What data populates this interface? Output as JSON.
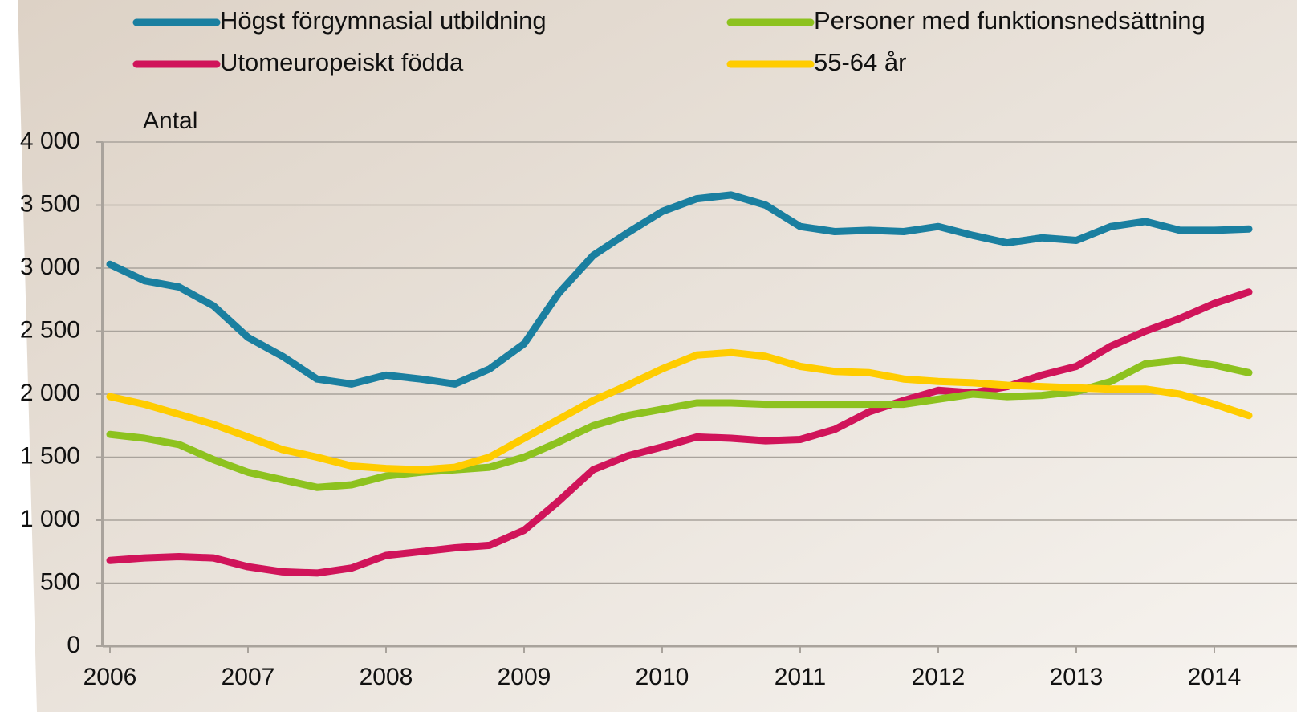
{
  "chart_data": {
    "type": "line",
    "y_label": "Antal",
    "x": [
      2006,
      2006.25,
      2006.5,
      2006.75,
      2007,
      2007.25,
      2007.5,
      2007.75,
      2008,
      2008.25,
      2008.5,
      2008.75,
      2009,
      2009.25,
      2009.5,
      2009.75,
      2010,
      2010.25,
      2010.5,
      2010.75,
      2011,
      2011.25,
      2011.5,
      2011.75,
      2012,
      2012.25,
      2012.5,
      2012.75,
      2013,
      2013.25,
      2013.5,
      2013.75,
      2014,
      2014.25
    ],
    "series": [
      {
        "name": "Högst förgymnasial utbildning",
        "color": "#1a7fa0",
        "values": [
          3030,
          2900,
          2850,
          2700,
          2450,
          2300,
          2120,
          2080,
          2150,
          2120,
          2080,
          2200,
          2400,
          2800,
          3100,
          3280,
          3450,
          3550,
          3580,
          3500,
          3330,
          3290,
          3300,
          3290,
          3330,
          3260,
          3200,
          3240,
          3220,
          3330,
          3370,
          3300,
          3300,
          3310
        ]
      },
      {
        "name": "Utomeuropeiskt födda",
        "color": "#d0145a",
        "values": [
          680,
          700,
          710,
          700,
          630,
          590,
          580,
          620,
          720,
          750,
          780,
          800,
          920,
          1150,
          1400,
          1510,
          1580,
          1660,
          1650,
          1630,
          1640,
          1720,
          1860,
          1950,
          2030,
          2010,
          2060,
          2150,
          2220,
          2380,
          2500,
          2600,
          2720,
          2810
        ]
      },
      {
        "name": "Personer med funktionsnedsättning",
        "color": "#8dc21f",
        "values": [
          1680,
          1650,
          1600,
          1480,
          1380,
          1320,
          1260,
          1280,
          1350,
          1380,
          1400,
          1420,
          1500,
          1620,
          1750,
          1830,
          1880,
          1930,
          1930,
          1920,
          1920,
          1920,
          1920,
          1920,
          1960,
          2000,
          1980,
          1990,
          2020,
          2100,
          2240,
          2270,
          2230,
          2170
        ]
      },
      {
        "name": "55-64 år",
        "color": "#ffcc00",
        "values": [
          1980,
          1920,
          1840,
          1760,
          1660,
          1560,
          1500,
          1430,
          1410,
          1400,
          1420,
          1500,
          1650,
          1800,
          1950,
          2070,
          2200,
          2310,
          2330,
          2300,
          2220,
          2180,
          2170,
          2120,
          2100,
          2090,
          2070,
          2060,
          2050,
          2040,
          2040,
          2000,
          1920,
          1830
        ]
      }
    ],
    "xlim": [
      2006,
      2014.25
    ],
    "xticks": [
      2006,
      2007,
      2008,
      2009,
      2010,
      2011,
      2012,
      2013,
      2014
    ],
    "ylim": [
      0,
      4000
    ],
    "yticks": [
      0,
      500,
      {
        "value": 1000,
        "label": "1 000"
      },
      {
        "value": 1500,
        "label": "1 500"
      },
      {
        "value": 2000,
        "label": "2 000"
      },
      {
        "value": 2500,
        "label": "2 500"
      },
      {
        "value": 3000,
        "label": "3 000"
      },
      {
        "value": 3500,
        "label": "3 500"
      },
      {
        "value": 4000,
        "label": "4 000"
      }
    ],
    "grid": true
  }
}
